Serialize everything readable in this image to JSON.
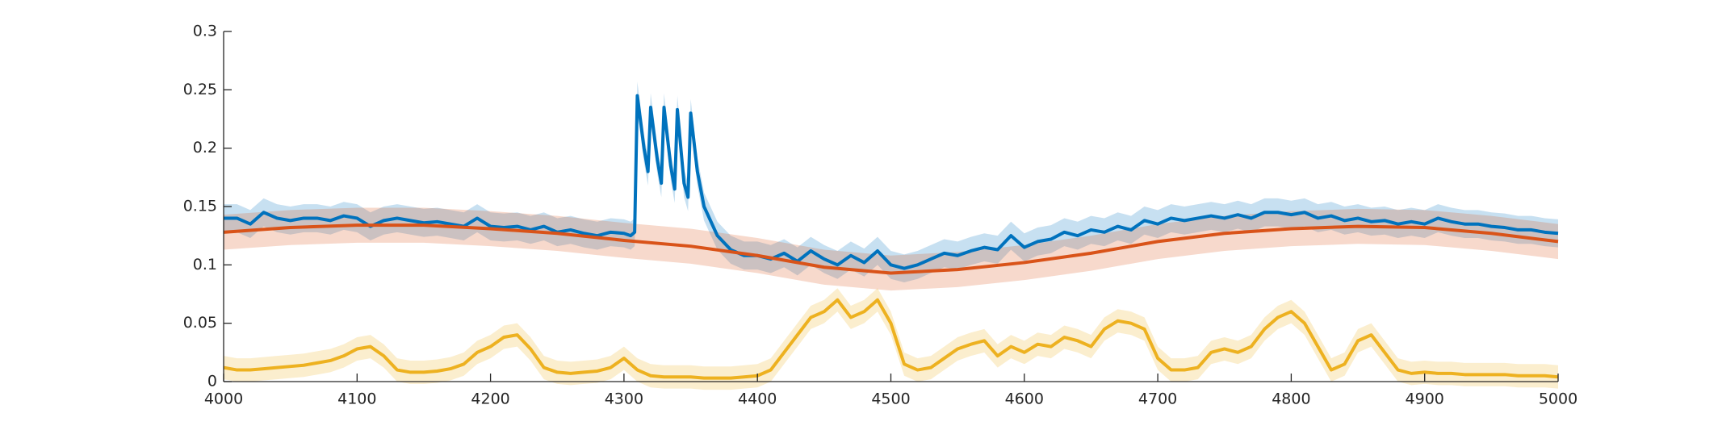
{
  "chart_data": {
    "type": "line",
    "xlim": [
      4000,
      5000
    ],
    "xticks": [
      4000,
      4100,
      4200,
      4300,
      4400,
      4500,
      4600,
      4700,
      4800,
      4900,
      5000
    ],
    "ylim": [
      0,
      0.3
    ],
    "yticks": [
      0,
      0.05,
      0.1,
      0.15,
      0.2,
      0.25,
      0.3
    ],
    "series": [
      {
        "color": "#0072bd",
        "band": 0.012,
        "x": [
          4000,
          4010,
          4020,
          4030,
          4040,
          4050,
          4060,
          4070,
          4080,
          4090,
          4100,
          4110,
          4120,
          4130,
          4140,
          4150,
          4160,
          4170,
          4180,
          4190,
          4200,
          4210,
          4220,
          4230,
          4240,
          4250,
          4260,
          4270,
          4280,
          4290,
          4300,
          4305,
          4308,
          4310,
          4315,
          4318,
          4320,
          4325,
          4328,
          4330,
          4335,
          4338,
          4340,
          4345,
          4348,
          4350,
          4355,
          4360,
          4370,
          4380,
          4390,
          4400,
          4410,
          4420,
          4430,
          4440,
          4450,
          4460,
          4470,
          4480,
          4490,
          4500,
          4510,
          4520,
          4530,
          4540,
          4550,
          4560,
          4570,
          4580,
          4590,
          4600,
          4610,
          4620,
          4630,
          4640,
          4650,
          4660,
          4670,
          4680,
          4690,
          4700,
          4710,
          4720,
          4730,
          4740,
          4750,
          4760,
          4770,
          4780,
          4790,
          4800,
          4810,
          4820,
          4830,
          4840,
          4850,
          4860,
          4870,
          4880,
          4890,
          4900,
          4910,
          4920,
          4930,
          4940,
          4950,
          4960,
          4970,
          4980,
          4990,
          5000
        ],
        "values": [
          0.14,
          0.14,
          0.135,
          0.145,
          0.14,
          0.138,
          0.14,
          0.14,
          0.138,
          0.142,
          0.14,
          0.133,
          0.138,
          0.14,
          0.138,
          0.136,
          0.137,
          0.135,
          0.133,
          0.14,
          0.133,
          0.132,
          0.133,
          0.13,
          0.133,
          0.128,
          0.13,
          0.127,
          0.125,
          0.128,
          0.127,
          0.125,
          0.128,
          0.245,
          0.2,
          0.18,
          0.235,
          0.19,
          0.17,
          0.235,
          0.185,
          0.165,
          0.233,
          0.17,
          0.158,
          0.23,
          0.18,
          0.15,
          0.125,
          0.113,
          0.108,
          0.108,
          0.105,
          0.11,
          0.103,
          0.112,
          0.105,
          0.1,
          0.108,
          0.102,
          0.112,
          0.1,
          0.097,
          0.1,
          0.105,
          0.11,
          0.108,
          0.112,
          0.115,
          0.113,
          0.125,
          0.115,
          0.12,
          0.122,
          0.128,
          0.125,
          0.13,
          0.128,
          0.133,
          0.13,
          0.138,
          0.135,
          0.14,
          0.138,
          0.14,
          0.142,
          0.14,
          0.143,
          0.14,
          0.145,
          0.145,
          0.143,
          0.145,
          0.14,
          0.142,
          0.138,
          0.14,
          0.137,
          0.138,
          0.135,
          0.137,
          0.135,
          0.14,
          0.137,
          0.135,
          0.135,
          0.133,
          0.132,
          0.13,
          0.13,
          0.128,
          0.127
        ]
      },
      {
        "color": "#d95319",
        "band": 0.015,
        "x": [
          4000,
          4050,
          4100,
          4150,
          4200,
          4250,
          4300,
          4350,
          4400,
          4450,
          4500,
          4550,
          4600,
          4650,
          4700,
          4750,
          4800,
          4850,
          4900,
          4950,
          5000
        ],
        "values": [
          0.128,
          0.132,
          0.134,
          0.134,
          0.131,
          0.127,
          0.121,
          0.116,
          0.108,
          0.098,
          0.093,
          0.096,
          0.102,
          0.11,
          0.12,
          0.127,
          0.131,
          0.133,
          0.132,
          0.127,
          0.12
        ]
      },
      {
        "color": "#edb120",
        "band": 0.01,
        "x": [
          4000,
          4010,
          4020,
          4030,
          4040,
          4050,
          4060,
          4070,
          4080,
          4090,
          4100,
          4110,
          4120,
          4130,
          4140,
          4150,
          4160,
          4170,
          4180,
          4190,
          4200,
          4210,
          4220,
          4230,
          4240,
          4250,
          4260,
          4270,
          4280,
          4290,
          4300,
          4310,
          4320,
          4330,
          4340,
          4350,
          4360,
          4370,
          4380,
          4390,
          4400,
          4410,
          4420,
          4430,
          4440,
          4450,
          4460,
          4470,
          4480,
          4490,
          4500,
          4510,
          4520,
          4530,
          4540,
          4550,
          4560,
          4570,
          4580,
          4590,
          4600,
          4610,
          4620,
          4630,
          4640,
          4650,
          4660,
          4670,
          4680,
          4690,
          4700,
          4710,
          4720,
          4730,
          4740,
          4750,
          4760,
          4770,
          4780,
          4790,
          4800,
          4810,
          4820,
          4830,
          4840,
          4850,
          4860,
          4870,
          4880,
          4890,
          4900,
          4910,
          4920,
          4930,
          4940,
          4950,
          4960,
          4970,
          4980,
          4990,
          5000
        ],
        "values": [
          0.012,
          0.01,
          0.01,
          0.011,
          0.012,
          0.013,
          0.014,
          0.016,
          0.018,
          0.022,
          0.028,
          0.03,
          0.022,
          0.01,
          0.008,
          0.008,
          0.009,
          0.011,
          0.015,
          0.025,
          0.03,
          0.038,
          0.04,
          0.028,
          0.012,
          0.008,
          0.007,
          0.008,
          0.009,
          0.012,
          0.02,
          0.01,
          0.005,
          0.004,
          0.004,
          0.004,
          0.003,
          0.003,
          0.003,
          0.004,
          0.005,
          0.01,
          0.025,
          0.04,
          0.055,
          0.06,
          0.07,
          0.055,
          0.06,
          0.07,
          0.05,
          0.015,
          0.01,
          0.012,
          0.02,
          0.028,
          0.032,
          0.035,
          0.022,
          0.03,
          0.025,
          0.032,
          0.03,
          0.038,
          0.035,
          0.03,
          0.045,
          0.052,
          0.05,
          0.045,
          0.02,
          0.01,
          0.01,
          0.012,
          0.025,
          0.028,
          0.025,
          0.03,
          0.045,
          0.055,
          0.06,
          0.05,
          0.03,
          0.01,
          0.015,
          0.035,
          0.04,
          0.025,
          0.01,
          0.007,
          0.008,
          0.007,
          0.007,
          0.006,
          0.006,
          0.006,
          0.006,
          0.005,
          0.005,
          0.005,
          0.004
        ]
      }
    ]
  }
}
